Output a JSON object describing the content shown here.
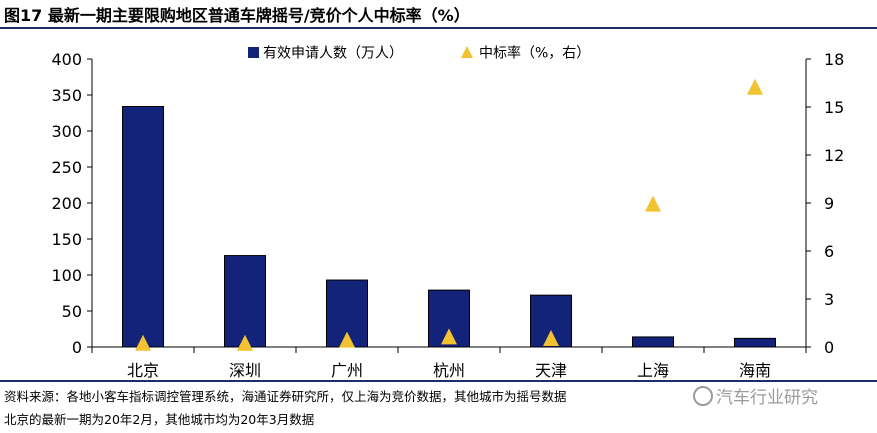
{
  "figure_title": "图17 最新一期主要限购地区普通车牌摇号/竞价个人中标率（%）",
  "source_note": [
    "资料来源：各地小客车指标调控管理系统，海通证券研究所，仅上海为竞价数据，其他城市为摇号数据",
    "北京的最新一期为20年2月，其他城市均为20年3月数据"
  ],
  "watermark": "汽车行业研究",
  "colors": {
    "bar": "#14237a",
    "marker": "#f2c230",
    "rule": "#1a2e6b"
  },
  "chart_data": {
    "type": "bar",
    "categories": [
      "北京",
      "深圳",
      "广州",
      "杭州",
      "天津",
      "上海",
      "海南"
    ],
    "series": [
      {
        "name": "有效申请人数（万人）",
        "type": "bar",
        "axis": "left",
        "values": [
          334,
          127,
          93,
          79,
          72,
          14,
          12
        ]
      },
      {
        "name": "中标率（%，右）",
        "type": "scatter",
        "axis": "right",
        "marker": "triangle",
        "values": [
          0.2,
          0.2,
          0.4,
          0.6,
          0.5,
          8.9,
          16.2
        ]
      }
    ],
    "y_left": {
      "min": 0,
      "max": 400,
      "ticks": [
        "0",
        "50",
        "100",
        "150",
        "200",
        "250",
        "300",
        "350",
        "400"
      ]
    },
    "y_right": {
      "min": 0,
      "max": 18,
      "ticks": [
        "0",
        "3",
        "6",
        "9",
        "12",
        "15",
        "18"
      ]
    },
    "legend": "top-center",
    "grid": false
  }
}
